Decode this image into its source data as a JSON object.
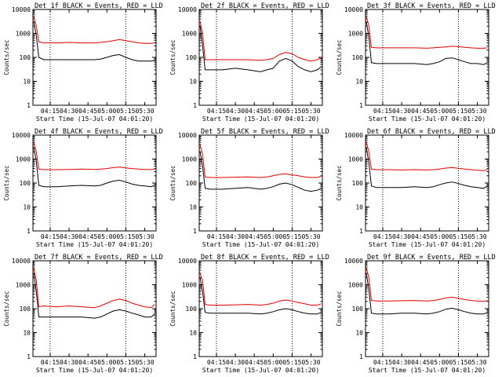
{
  "figure": {
    "background": "#ffffff",
    "colors": {
      "events": "#000000",
      "lld": "#e00000",
      "axes": "#000000"
    }
  },
  "chart_data": [
    {
      "type": "line",
      "title": "Det 1f BLACK = Events, RED = LLD",
      "xlabel": "Start Time (15-Jul-07 04:01:20)",
      "ylabel": "Counts/sec",
      "ylog": true,
      "ylim": [
        1,
        10000
      ],
      "yticks": [
        "1",
        "10",
        "100",
        "1000",
        "10000"
      ],
      "xlim": [
        "04:01:20",
        "05:39:00"
      ],
      "xticks": [
        "04:15",
        "04:30",
        "04:45",
        "05:00",
        "05:15",
        "05:30"
      ],
      "vlines": [
        "04:15",
        "05:15"
      ],
      "x": [
        "04:02",
        "04:04",
        "04:06",
        "04:10",
        "04:20",
        "04:30",
        "04:40",
        "04:50",
        "04:55",
        "05:00",
        "05:05",
        "05:10",
        "05:15",
        "05:20",
        "05:25",
        "05:30",
        "05:35",
        "05:38"
      ],
      "series": [
        {
          "name": "Events",
          "values": [
            3000,
            800,
            100,
            80,
            80,
            80,
            80,
            80,
            85,
            100,
            120,
            130,
            100,
            80,
            70,
            70,
            70,
            75
          ]
        },
        {
          "name": "LLD",
          "values": [
            5000,
            2000,
            450,
            400,
            400,
            420,
            400,
            400,
            420,
            450,
            500,
            550,
            500,
            450,
            400,
            380,
            380,
            400
          ]
        }
      ]
    },
    {
      "type": "line",
      "title": "Det 2f BLACK = Events, RED = LLD",
      "xlabel": "Start Time (15-Jul-07 04:01:20)",
      "ylabel": "Counts/sec",
      "ylog": true,
      "ylim": [
        1,
        10000
      ],
      "yticks": [
        "1",
        "10",
        "100",
        "1000",
        "10000"
      ],
      "xlim": [
        "04:01:20",
        "05:39:00"
      ],
      "xticks": [
        "04:15",
        "04:30",
        "04:45",
        "05:00",
        "05:15",
        "05:30"
      ],
      "vlines": [
        "04:15",
        "05:15"
      ],
      "x": [
        "04:02",
        "04:04",
        "04:06",
        "04:10",
        "04:20",
        "04:30",
        "04:40",
        "04:50",
        "04:55",
        "05:00",
        "05:05",
        "05:10",
        "05:15",
        "05:20",
        "05:25",
        "05:30",
        "05:35",
        "05:38"
      ],
      "series": [
        {
          "name": "Events",
          "values": [
            2000,
            300,
            30,
            30,
            30,
            35,
            30,
            25,
            30,
            35,
            70,
            90,
            70,
            40,
            30,
            25,
            30,
            40
          ]
        },
        {
          "name": "LLD",
          "values": [
            3000,
            1000,
            80,
            80,
            80,
            80,
            80,
            75,
            80,
            90,
            130,
            160,
            140,
            100,
            80,
            70,
            80,
            100
          ]
        }
      ]
    },
    {
      "type": "line",
      "title": "Det 3f BLACK = Events, RED = LLD",
      "xlabel": "Start Time (15-Jul-07 04:01:20)",
      "ylabel": "Counts/sec",
      "ylog": true,
      "ylim": [
        1,
        10000
      ],
      "yticks": [
        "1",
        "10",
        "100",
        "1000",
        "10000"
      ],
      "xlim": [
        "04:01:20",
        "05:39:00"
      ],
      "xticks": [
        "04:15",
        "04:30",
        "04:45",
        "05:00",
        "05:15",
        "05:30"
      ],
      "vlines": [
        "04:15",
        "05:15"
      ],
      "x": [
        "04:02",
        "04:04",
        "04:06",
        "04:10",
        "04:20",
        "04:30",
        "04:40",
        "04:50",
        "04:55",
        "05:00",
        "05:05",
        "05:10",
        "05:15",
        "05:20",
        "05:25",
        "05:30",
        "05:35",
        "05:38"
      ],
      "series": [
        {
          "name": "Events",
          "values": [
            3000,
            700,
            60,
            55,
            55,
            55,
            55,
            50,
            55,
            65,
            90,
            95,
            80,
            65,
            55,
            55,
            50,
            60
          ]
        },
        {
          "name": "LLD",
          "values": [
            5000,
            2000,
            260,
            250,
            250,
            250,
            250,
            240,
            250,
            260,
            270,
            290,
            280,
            260,
            250,
            240,
            240,
            250
          ]
        }
      ]
    },
    {
      "type": "line",
      "title": "Det 4f BLACK = Events, RED = LLD",
      "xlabel": "Start Time (15-Jul-07 04:01:20)",
      "ylabel": "Counts/sec",
      "ylog": true,
      "ylim": [
        1,
        10000
      ],
      "yticks": [
        "1",
        "10",
        "100",
        "1000",
        "10000"
      ],
      "xlim": [
        "04:01:20",
        "05:39:00"
      ],
      "xticks": [
        "04:15",
        "04:30",
        "04:45",
        "05:00",
        "05:15",
        "05:30"
      ],
      "vlines": [
        "04:15",
        "05:15"
      ],
      "x": [
        "04:02",
        "04:04",
        "04:06",
        "04:10",
        "04:20",
        "04:30",
        "04:40",
        "04:50",
        "04:55",
        "05:00",
        "05:05",
        "05:10",
        "05:15",
        "05:20",
        "05:25",
        "05:30",
        "05:35",
        "05:38"
      ],
      "series": [
        {
          "name": "Events",
          "values": [
            3000,
            800,
            80,
            70,
            70,
            75,
            80,
            75,
            80,
            100,
            120,
            130,
            110,
            90,
            80,
            75,
            70,
            80
          ]
        },
        {
          "name": "LLD",
          "values": [
            5000,
            2000,
            380,
            360,
            360,
            370,
            380,
            370,
            380,
            400,
            440,
            460,
            430,
            400,
            380,
            370,
            360,
            380
          ]
        }
      ]
    },
    {
      "type": "line",
      "title": "Det 5f BLACK = Events, RED = LLD",
      "xlabel": "Start Time (15-Jul-07 04:01:20)",
      "ylabel": "Counts/sec",
      "ylog": true,
      "ylim": [
        1,
        10000
      ],
      "yticks": [
        "1",
        "10",
        "100",
        "1000",
        "10000"
      ],
      "xlim": [
        "04:01:20",
        "05:39:00"
      ],
      "xticks": [
        "04:15",
        "04:30",
        "04:45",
        "05:00",
        "05:15",
        "05:30"
      ],
      "vlines": [
        "04:15",
        "05:15"
      ],
      "x": [
        "04:02",
        "04:04",
        "04:06",
        "04:10",
        "04:20",
        "04:30",
        "04:40",
        "04:50",
        "04:55",
        "05:00",
        "05:05",
        "05:10",
        "05:15",
        "05:20",
        "05:25",
        "05:30",
        "05:35",
        "05:38"
      ],
      "series": [
        {
          "name": "Events",
          "values": [
            2000,
            500,
            60,
            55,
            55,
            60,
            65,
            55,
            60,
            70,
            90,
            100,
            85,
            65,
            50,
            45,
            50,
            60
          ]
        },
        {
          "name": "LLD",
          "values": [
            4000,
            1500,
            180,
            170,
            170,
            175,
            180,
            170,
            180,
            200,
            230,
            240,
            220,
            200,
            180,
            170,
            170,
            190
          ]
        }
      ]
    },
    {
      "type": "line",
      "title": "Det 6f BLACK = Events, RED = LLD",
      "xlabel": "Start Time (15-Jul-07 04:01:20)",
      "ylabel": "Counts/sec",
      "ylog": true,
      "ylim": [
        1,
        10000
      ],
      "yticks": [
        "1",
        "10",
        "100",
        "1000",
        "10000"
      ],
      "xlim": [
        "04:01:20",
        "05:39:00"
      ],
      "xticks": [
        "04:15",
        "04:30",
        "04:45",
        "05:00",
        "05:15",
        "05:30"
      ],
      "vlines": [
        "04:15",
        "05:15"
      ],
      "x": [
        "04:02",
        "04:04",
        "04:06",
        "04:10",
        "04:20",
        "04:30",
        "04:40",
        "04:50",
        "04:55",
        "05:00",
        "05:05",
        "05:10",
        "05:15",
        "05:20",
        "05:25",
        "05:30",
        "05:35",
        "05:38"
      ],
      "series": [
        {
          "name": "Events",
          "values": [
            3000,
            700,
            75,
            65,
            65,
            65,
            70,
            65,
            70,
            85,
            100,
            110,
            95,
            80,
            70,
            65,
            60,
            75
          ]
        },
        {
          "name": "LLD",
          "values": [
            5000,
            2000,
            380,
            360,
            360,
            350,
            360,
            350,
            360,
            380,
            420,
            440,
            410,
            380,
            360,
            340,
            330,
            360
          ]
        }
      ]
    },
    {
      "type": "line",
      "title": "Det 7f BLACK = Events, RED = LLD",
      "xlabel": "Start Time (15-Jul-07 04:01:20)",
      "ylabel": "Counts/sec",
      "ylog": true,
      "ylim": [
        1,
        10000
      ],
      "yticks": [
        "1",
        "10",
        "100",
        "1000",
        "10000"
      ],
      "xlim": [
        "04:01:20",
        "05:39:00"
      ],
      "xticks": [
        "04:15",
        "04:30",
        "04:45",
        "05:00",
        "05:15",
        "05:30"
      ],
      "vlines": [
        "04:15",
        "05:15"
      ],
      "x": [
        "04:02",
        "04:04",
        "04:06",
        "04:10",
        "04:20",
        "04:30",
        "04:40",
        "04:50",
        "04:55",
        "05:00",
        "05:05",
        "05:10",
        "05:15",
        "05:20",
        "05:25",
        "05:30",
        "05:35",
        "05:38"
      ],
      "series": [
        {
          "name": "Events",
          "values": [
            3000,
            500,
            45,
            45,
            45,
            45,
            45,
            40,
            45,
            60,
            80,
            90,
            80,
            65,
            55,
            45,
            45,
            60
          ]
        },
        {
          "name": "LLD",
          "values": [
            5000,
            1500,
            120,
            130,
            120,
            130,
            120,
            110,
            130,
            170,
            220,
            250,
            220,
            170,
            140,
            120,
            110,
            150
          ]
        }
      ]
    },
    {
      "type": "line",
      "title": "Det 8f BLACK = Events, RED = LLD",
      "xlabel": "Start Time (15-Jul-07 04:01:20)",
      "ylabel": "Counts/sec",
      "ylog": true,
      "ylim": [
        1,
        10000
      ],
      "yticks": [
        "1",
        "10",
        "100",
        "1000",
        "10000"
      ],
      "xlim": [
        "04:01:20",
        "05:39:00"
      ],
      "xticks": [
        "04:15",
        "04:30",
        "04:45",
        "05:00",
        "05:15",
        "05:30"
      ],
      "vlines": [
        "04:15",
        "05:15"
      ],
      "x": [
        "04:02",
        "04:04",
        "04:06",
        "04:10",
        "04:20",
        "04:30",
        "04:40",
        "04:50",
        "04:55",
        "05:00",
        "05:05",
        "05:10",
        "05:15",
        "05:20",
        "05:25",
        "05:30",
        "05:35",
        "05:38"
      ],
      "series": [
        {
          "name": "Events",
          "values": [
            2000,
            500,
            70,
            65,
            65,
            65,
            65,
            60,
            65,
            75,
            90,
            100,
            90,
            75,
            65,
            60,
            60,
            70
          ]
        },
        {
          "name": "LLD",
          "values": [
            3000,
            1500,
            150,
            140,
            140,
            145,
            150,
            140,
            150,
            170,
            210,
            230,
            210,
            180,
            160,
            140,
            140,
            160
          ]
        }
      ]
    },
    {
      "type": "line",
      "title": "Det 9f BLACK = Events, RED = LLD",
      "xlabel": "Start Time (15-Jul-07 04:01:20)",
      "ylabel": "Counts/sec",
      "ylog": true,
      "ylim": [
        1,
        10000
      ],
      "yticks": [
        "1",
        "10",
        "100",
        "1000",
        "10000"
      ],
      "xlim": [
        "04:01:20",
        "05:39:00"
      ],
      "xticks": [
        "04:15",
        "04:30",
        "04:45",
        "05:00",
        "05:15",
        "05:30"
      ],
      "vlines": [
        "04:15",
        "05:15"
      ],
      "x": [
        "04:02",
        "04:04",
        "04:06",
        "04:10",
        "04:20",
        "04:30",
        "04:40",
        "04:50",
        "04:55",
        "05:00",
        "05:05",
        "05:10",
        "05:15",
        "05:20",
        "05:25",
        "05:30",
        "05:35",
        "05:38"
      ],
      "series": [
        {
          "name": "Events",
          "values": [
            3000,
            600,
            65,
            60,
            60,
            65,
            65,
            60,
            65,
            75,
            95,
            105,
            90,
            75,
            65,
            60,
            60,
            70
          ]
        },
        {
          "name": "LLD",
          "values": [
            5000,
            2000,
            220,
            210,
            210,
            215,
            220,
            210,
            220,
            240,
            280,
            300,
            270,
            240,
            220,
            210,
            200,
            220
          ]
        }
      ]
    }
  ]
}
